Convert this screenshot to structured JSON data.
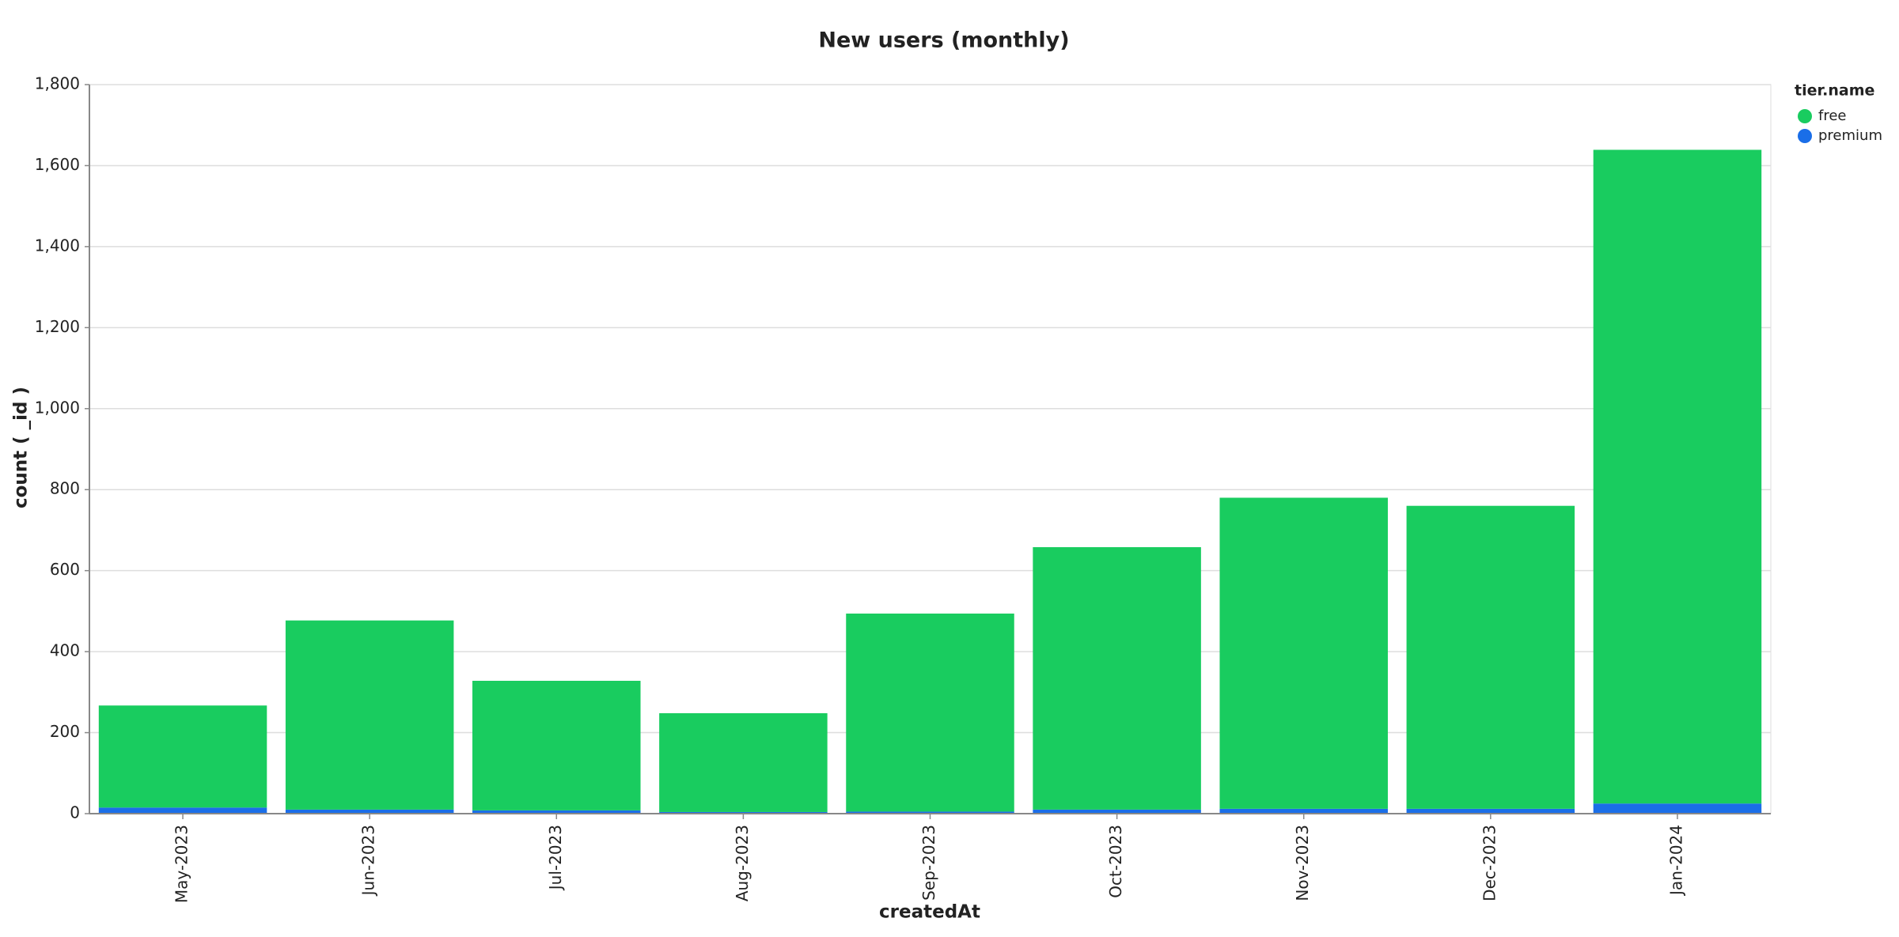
{
  "chart_data": {
    "type": "stacked-bar",
    "title": "New users (monthly)",
    "x_label": "createdAt",
    "y_label": "count ( _id )",
    "legend_title": "tier.name",
    "legend_position": "right",
    "categories": [
      "May-2023",
      "Jun-2023",
      "Jul-2023",
      "Aug-2023",
      "Sep-2023",
      "Oct-2023",
      "Nov-2023",
      "Dec-2023",
      "Jan-2024"
    ],
    "series": [
      {
        "name": "free",
        "color": "#19cc5f",
        "values": [
          252,
          467,
          320,
          244,
          489,
          648,
          768,
          748,
          1614
        ]
      },
      {
        "name": "premium",
        "color": "#1a6ee8",
        "values": [
          15,
          10,
          8,
          4,
          5,
          10,
          12,
          12,
          25
        ]
      }
    ],
    "ylim": [
      0,
      1800
    ],
    "yticks": [
      0,
      200,
      400,
      600,
      800,
      {
        "value": 1000,
        "label": "1,000"
      },
      {
        "value": 1200,
        "label": "1,200"
      },
      {
        "value": 1400,
        "label": "1,400"
      },
      {
        "value": 1600,
        "label": "1,600"
      },
      {
        "value": 1800,
        "label": "1,800"
      }
    ],
    "grid": true
  }
}
